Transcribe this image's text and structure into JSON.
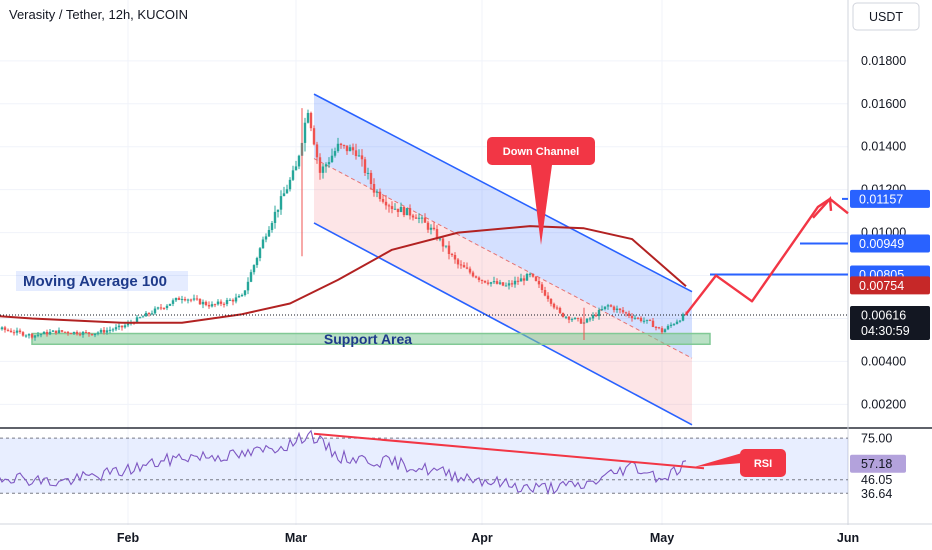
{
  "header": {
    "title": "Verasity / Tether, 12h, KUCOIN"
  },
  "currency_button": {
    "label": "USDT"
  },
  "colors": {
    "up": "#26a69a",
    "down": "#ef5350",
    "ma": "#b22222",
    "channel": "#2962ff",
    "rsi_line": "#7e57c2",
    "projection": "#f23645",
    "support_fill": "#81c995",
    "price_badge": "#131722",
    "target_badge": "#2962ff",
    "ma_badge": "#c62828"
  },
  "chart_data": [
    {
      "type": "candlestick",
      "title": "Verasity / Tether, 12h, KUCOIN",
      "x_ticks": [
        "Feb",
        "Mar",
        "Apr",
        "May",
        "Jun"
      ],
      "y_ticks": [
        "0.01800",
        "0.01600",
        "0.01400",
        "0.01200",
        "0.01000",
        "0.00400",
        "0.00200"
      ],
      "ylim": [
        0.0009,
        0.0206
      ],
      "grid": true,
      "series": [
        {
          "role": "price",
          "points": [
            [
              "2023-01-01",
              0.0058
            ],
            [
              "2023-01-06",
              0.0057
            ],
            [
              "2023-01-11",
              0.0055
            ],
            [
              "2023-01-16",
              0.0052
            ],
            [
              "2023-01-20",
              0.0054
            ],
            [
              "2023-01-26",
              0.0053
            ],
            [
              "2023-01-31",
              0.0056
            ],
            [
              "2023-02-05",
              0.0063
            ],
            [
              "2023-02-10",
              0.007
            ],
            [
              "2023-02-15",
              0.0066
            ],
            [
              "2023-02-20",
              0.007
            ],
            [
              "2023-02-24",
              0.01
            ],
            [
              "2023-03-01",
              0.013
            ],
            [
              "2023-03-03",
              0.0158
            ],
            [
              "2023-03-05",
              0.0128
            ],
            [
              "2023-03-08",
              0.014
            ],
            [
              "2023-03-11",
              0.0138
            ],
            [
              "2023-03-14",
              0.012
            ],
            [
              "2023-03-17",
              0.0112
            ],
            [
              "2023-03-21",
              0.0108
            ],
            [
              "2023-03-24",
              0.01
            ],
            [
              "2023-03-28",
              0.0085
            ],
            [
              "2023-04-01",
              0.0078
            ],
            [
              "2023-04-05",
              0.0075
            ],
            [
              "2023-04-09",
              0.008
            ],
            [
              "2023-04-12",
              0.007
            ],
            [
              "2023-04-14",
              0.0062
            ],
            [
              "2023-04-18",
              0.0058
            ],
            [
              "2023-04-22",
              0.0066
            ],
            [
              "2023-04-26",
              0.0061
            ],
            [
              "2023-04-29",
              0.0058
            ],
            [
              "2023-05-01",
              0.0054
            ],
            [
              "2023-05-05",
              0.0062
            ]
          ]
        },
        {
          "role": "moving_average",
          "points": [
            [
              "2023-01-01",
              0.0063
            ],
            [
              "2023-01-16",
              0.006
            ],
            [
              "2023-01-31",
              0.0058
            ],
            [
              "2023-02-10",
              0.0058
            ],
            [
              "2023-02-20",
              0.0062
            ],
            [
              "2023-02-28",
              0.0067
            ],
            [
              "2023-03-08",
              0.0078
            ],
            [
              "2023-03-17",
              0.0092
            ],
            [
              "2023-03-28",
              0.01
            ],
            [
              "2023-04-09",
              0.0103
            ],
            [
              "2023-04-18",
              0.0102
            ],
            [
              "2023-04-26",
              0.0097
            ],
            [
              "2023-05-05",
              0.0075
            ]
          ]
        }
      ],
      "annotations": {
        "moving_average_label": "Moving Average 100",
        "support_label": "Support Area",
        "channel_label": "Down Channel",
        "rsi_label": "RSI"
      },
      "price_labels": {
        "target_1": "0.01157",
        "target_2": "0.00949",
        "target_3": "0.00805",
        "ma_value": "0.00754",
        "last_price": "0.00616",
        "countdown": "04:30:59"
      }
    },
    {
      "type": "line",
      "title": "",
      "y_ticks": [
        "75.00",
        "46.05",
        "36.64"
      ],
      "ylim": [
        25,
        82
      ],
      "current_value": "57.18",
      "series": [
        {
          "role": "rsi",
          "points": [
            [
              "2023-01-01",
              47
            ],
            [
              "2023-01-11",
              49
            ],
            [
              "2023-01-20",
              44
            ],
            [
              "2023-01-31",
              52
            ],
            [
              "2023-02-10",
              62
            ],
            [
              "2023-02-20",
              63
            ],
            [
              "2023-03-01",
              72
            ],
            [
              "2023-03-03",
              79
            ],
            [
              "2023-03-08",
              62
            ],
            [
              "2023-03-17",
              58
            ],
            [
              "2023-03-28",
              49
            ],
            [
              "2023-04-09",
              40
            ],
            [
              "2023-04-18",
              42
            ],
            [
              "2023-04-26",
              56
            ],
            [
              "2023-05-01",
              47
            ],
            [
              "2023-05-05",
              57
            ]
          ]
        }
      ]
    }
  ]
}
